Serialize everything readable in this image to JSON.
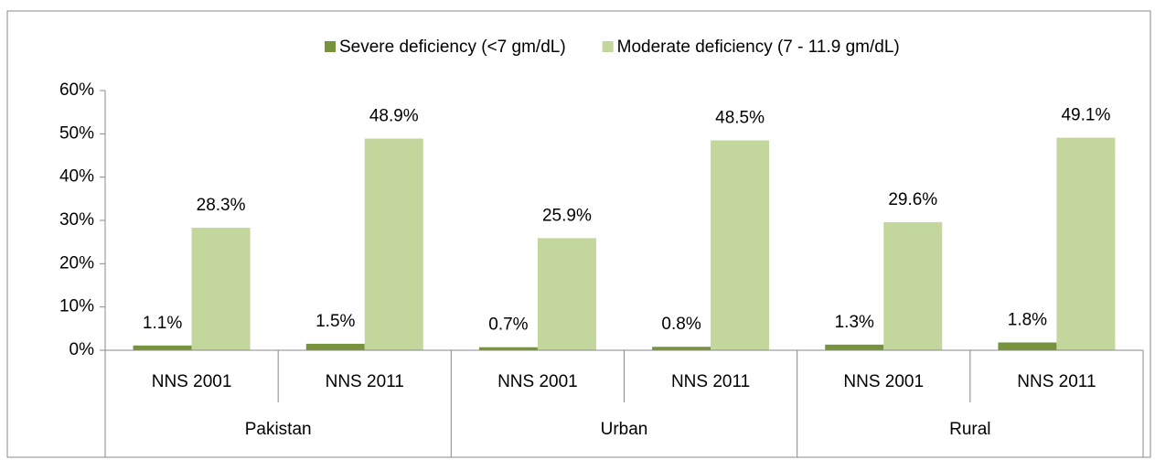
{
  "chart_data": {
    "type": "bar",
    "categories": [
      "NNS 2001",
      "NNS 2011",
      "NNS 2001",
      "NNS 2011",
      "NNS 2001",
      "NNS 2011"
    ],
    "groups": [
      "Pakistan",
      "Urban",
      "Rural"
    ],
    "series": [
      {
        "name": "Severe deficiency (<7 gm/dL)",
        "color": "#77933c",
        "values": [
          1.1,
          1.5,
          0.7,
          0.8,
          1.3,
          1.8
        ],
        "value_labels": [
          "1.1%",
          "1.5%",
          "0.7%",
          "0.8%",
          "1.3%",
          "1.8%"
        ]
      },
      {
        "name": "Moderate deficiency (7 - 11.9 gm/dL)",
        "color": "#c3d69b",
        "values": [
          28.3,
          48.9,
          25.9,
          48.5,
          29.6,
          49.1
        ],
        "value_labels": [
          "28.3%",
          "48.9%",
          "25.9%",
          "48.5%",
          "29.6%",
          "49.1%"
        ]
      }
    ],
    "ylim": [
      0,
      60
    ],
    "yticks": [
      {
        "value": 0,
        "label": "0%"
      },
      {
        "value": 10,
        "label": "10%"
      },
      {
        "value": 20,
        "label": "20%"
      },
      {
        "value": 30,
        "label": "30%"
      },
      {
        "value": 40,
        "label": "40%"
      },
      {
        "value": 50,
        "label": "50%"
      },
      {
        "value": 60,
        "label": "60%"
      }
    ],
    "legend": "top"
  }
}
